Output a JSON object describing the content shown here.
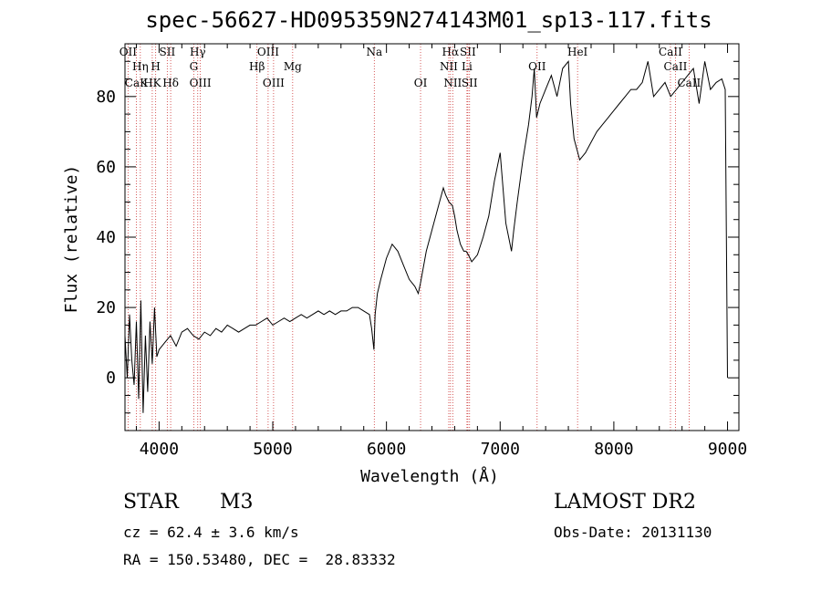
{
  "chart_data": {
    "type": "line",
    "title": "spec-56627-HD095359N274143M01_sp13-117.fits",
    "xlabel": "Wavelength (Å)",
    "ylabel": "Flux (relative)",
    "xlim": [
      3700,
      9100
    ],
    "ylim": [
      -15,
      95
    ],
    "xticks": [
      4000,
      5000,
      6000,
      7000,
      8000,
      9000
    ],
    "yticks": [
      0,
      20,
      40,
      60,
      80
    ],
    "grid": false,
    "series": [
      {
        "x": [
          3700,
          3720,
          3740,
          3760,
          3780,
          3800,
          3820,
          3840,
          3860,
          3880,
          3900,
          3920,
          3940,
          3960,
          3980,
          4000,
          4050,
          4100,
          4150,
          4200,
          4250,
          4300,
          4350,
          4400,
          4450,
          4500,
          4550,
          4600,
          4650,
          4700,
          4750,
          4800,
          4850,
          4900,
          4950,
          5000,
          5050,
          5100,
          5150,
          5200,
          5250,
          5300,
          5350,
          5400,
          5450,
          5500,
          5550,
          5600,
          5650,
          5700,
          5750,
          5800,
          5850,
          5870,
          5890,
          5900,
          5920,
          5950,
          6000,
          6050,
          6100,
          6150,
          6200,
          6250,
          6280,
          6300,
          6350,
          6400,
          6450,
          6500,
          6520,
          6550,
          6580,
          6600,
          6620,
          6650,
          6680,
          6700,
          6720,
          6750,
          6800,
          6850,
          6900,
          6950,
          7000,
          7050,
          7100,
          7120,
          7150,
          7200,
          7250,
          7280,
          7300,
          7320,
          7350,
          7400,
          7450,
          7500,
          7550,
          7600,
          7620,
          7650,
          7700,
          7750,
          7800,
          7850,
          7900,
          7950,
          8000,
          8050,
          8100,
          8150,
          8200,
          8250,
          8300,
          8350,
          8400,
          8450,
          8500,
          8550,
          8600,
          8650,
          8700,
          8750,
          8800,
          8850,
          8900,
          8950,
          8980,
          9000
        ],
        "y": [
          12,
          0,
          18,
          5,
          -2,
          16,
          -6,
          22,
          -10,
          12,
          -4,
          16,
          4,
          20,
          6,
          8,
          10,
          12,
          9,
          13,
          14,
          12,
          11,
          13,
          12,
          14,
          13,
          15,
          14,
          13,
          14,
          15,
          15,
          16,
          17,
          15,
          16,
          17,
          16,
          17,
          18,
          17,
          18,
          19,
          18,
          19,
          18,
          19,
          19,
          20,
          20,
          19,
          18,
          14,
          8,
          18,
          24,
          28,
          34,
          38,
          36,
          32,
          28,
          26,
          24,
          27,
          36,
          42,
          48,
          54,
          52,
          50,
          49,
          46,
          42,
          38,
          36,
          36,
          35,
          33,
          35,
          40,
          46,
          56,
          64,
          44,
          36,
          42,
          50,
          62,
          72,
          80,
          88,
          74,
          78,
          82,
          86,
          80,
          88,
          90,
          78,
          68,
          62,
          64,
          67,
          70,
          72,
          74,
          76,
          78,
          80,
          82,
          82,
          84,
          90,
          80,
          82,
          84,
          80,
          82,
          84,
          86,
          88,
          78,
          90,
          82,
          84,
          85,
          82,
          0
        ]
      }
    ],
    "spectral_lines": [
      {
        "label": "OII",
        "x": 3727,
        "row": 1
      },
      {
        "label": "Hη",
        "x": 3835,
        "row": 2
      },
      {
        "label": "CaK",
        "x": 3800,
        "row": 3
      },
      {
        "label": "H",
        "x": 3970,
        "row": 2
      },
      {
        "label": "HK",
        "x": 3940,
        "row": 3
      },
      {
        "label": "SII",
        "x": 4072,
        "row": 1
      },
      {
        "label": "Hδ",
        "x": 4102,
        "row": 3
      },
      {
        "label": "Hγ",
        "x": 4340,
        "row": 1
      },
      {
        "label": "G",
        "x": 4305,
        "row": 2
      },
      {
        "label": "OIII",
        "x": 4363,
        "row": 3
      },
      {
        "label": "OIII",
        "x": 4959,
        "row": 1
      },
      {
        "label": "Hβ",
        "x": 4861,
        "row": 2
      },
      {
        "label": "OIII",
        "x": 5007,
        "row": 3
      },
      {
        "label": "Mg",
        "x": 5175,
        "row": 2
      },
      {
        "label": "Na",
        "x": 5893,
        "row": 1
      },
      {
        "label": "OI",
        "x": 6300,
        "row": 3
      },
      {
        "label": "Hα",
        "x": 6563,
        "row": 1
      },
      {
        "label": "NII",
        "x": 6548,
        "row": 2
      },
      {
        "label": "NII",
        "x": 6583,
        "row": 3
      },
      {
        "label": "SII",
        "x": 6716,
        "row": 1
      },
      {
        "label": "Li",
        "x": 6708,
        "row": 2
      },
      {
        "label": "SII",
        "x": 6731,
        "row": 3
      },
      {
        "label": "OII",
        "x": 7325,
        "row": 2
      },
      {
        "label": "HeI",
        "x": 7681,
        "row": 1
      },
      {
        "label": "CaII",
        "x": 8498,
        "row": 1
      },
      {
        "label": "CaII",
        "x": 8542,
        "row": 2
      },
      {
        "label": "CaII",
        "x": 8662,
        "row": 3
      }
    ]
  },
  "info": {
    "object_class": "STAR",
    "subclass": "M3",
    "cz": "cz = 62.4 ± 3.6 km/s",
    "coords": "RA = 150.53480, DEC =  28.83332",
    "survey": "LAMOST DR2",
    "obs_date": "Obs-Date: 20131130"
  },
  "colors": {
    "spectrum": "#000000",
    "line_markers": "#cc3333"
  }
}
